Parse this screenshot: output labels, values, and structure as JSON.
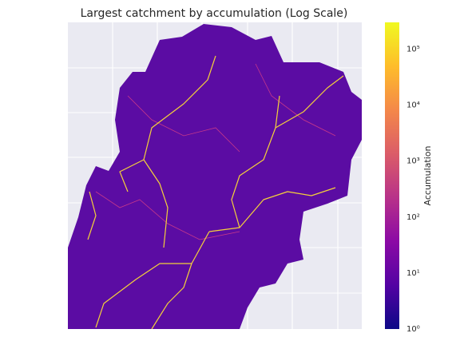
{
  "chart_data": {
    "type": "image",
    "title": "Largest catchment by accumulation (Log Scale)",
    "colorbar": {
      "label": "Accumulation",
      "cmap": "plasma",
      "log": true,
      "lim": [
        1,
        300000
      ],
      "ticks": [
        {
          "value": 1,
          "label": "10⁰"
        },
        {
          "value": 10,
          "label": "10¹"
        },
        {
          "value": 100,
          "label": "10²"
        },
        {
          "value": 1000,
          "label": "10³"
        },
        {
          "value": 10000,
          "label": "10⁴"
        },
        {
          "value": 100000,
          "label": "10⁵"
        }
      ]
    }
  }
}
